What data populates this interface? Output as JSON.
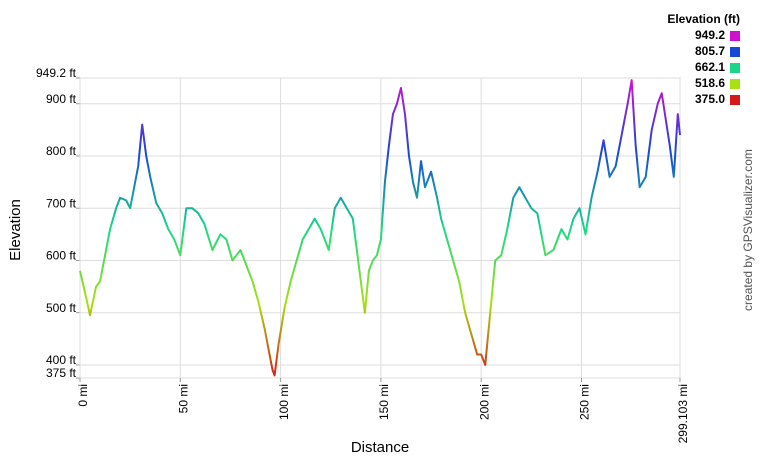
{
  "chart_data": {
    "type": "line",
    "x_label": "Distance",
    "y_label": "Elevation",
    "credit": "created by GPSVisualizer.com",
    "legend_title": "Elevation (ft)",
    "color_scale": [
      {
        "value": 949.2,
        "color": "#d010d0"
      },
      {
        "value": 805.7,
        "color": "#1848d8"
      },
      {
        "value": 662.1,
        "color": "#18d888"
      },
      {
        "value": 518.6,
        "color": "#a8e010"
      },
      {
        "value": 375.0,
        "label": "375.0",
        "color": "#d81818"
      }
    ],
    "grid": true,
    "xlim": [
      0,
      299.103
    ],
    "ylim": [
      375,
      949.2
    ],
    "xticks": [
      {
        "value": 0,
        "label": "0 mi"
      },
      {
        "value": 50,
        "label": "50 mi"
      },
      {
        "value": 100,
        "label": "100 mi"
      },
      {
        "value": 150,
        "label": "150 mi"
      },
      {
        "value": 200,
        "label": "200 mi"
      },
      {
        "value": 250,
        "label": "250 mi"
      },
      {
        "value": 299.103,
        "label": "299.103 mi"
      }
    ],
    "yticks": [
      {
        "value": 375,
        "label": "375 ft"
      },
      {
        "value": 400,
        "label": "400 ft"
      },
      {
        "value": 500,
        "label": "500 ft"
      },
      {
        "value": 600,
        "label": "600 ft"
      },
      {
        "value": 700,
        "label": "700 ft"
      },
      {
        "value": 800,
        "label": "800 ft"
      },
      {
        "value": 900,
        "label": "900 ft"
      },
      {
        "value": 949.2,
        "label": "949.2 ft"
      }
    ],
    "x": [
      0,
      3,
      5,
      8,
      10,
      12,
      15,
      18,
      20,
      23,
      25,
      27,
      29,
      31,
      33,
      35,
      38,
      41,
      44,
      47,
      50,
      53,
      56,
      59,
      62,
      66,
      70,
      73,
      76,
      80,
      83,
      86,
      89,
      92,
      94,
      96,
      97,
      99,
      102,
      105,
      108,
      111,
      114,
      117,
      120,
      124,
      127,
      130,
      133,
      136,
      138,
      140,
      142,
      144,
      146,
      148,
      150,
      152,
      154,
      156,
      158,
      160,
      162,
      164,
      166,
      168,
      170,
      172,
      175,
      178,
      180,
      183,
      186,
      189,
      192,
      195,
      198,
      200,
      202,
      204,
      207,
      210,
      213,
      216,
      219,
      222,
      225,
      228,
      232,
      236,
      240,
      243,
      246,
      249,
      252,
      255,
      258,
      261,
      264,
      267,
      270,
      273,
      275,
      277,
      279,
      282,
      285,
      288,
      290,
      292,
      294,
      296,
      298,
      299.103
    ],
    "values": [
      580,
      530,
      495,
      550,
      560,
      600,
      660,
      700,
      720,
      715,
      700,
      740,
      780,
      860,
      800,
      760,
      710,
      690,
      660,
      640,
      610,
      700,
      700,
      690,
      670,
      620,
      650,
      640,
      600,
      620,
      590,
      560,
      520,
      470,
      430,
      390,
      380,
      440,
      510,
      560,
      600,
      640,
      660,
      680,
      660,
      620,
      700,
      720,
      700,
      680,
      620,
      560,
      500,
      580,
      600,
      610,
      640,
      750,
      820,
      880,
      900,
      930,
      880,
      800,
      750,
      720,
      790,
      740,
      770,
      720,
      680,
      640,
      600,
      560,
      500,
      460,
      420,
      420,
      400,
      480,
      600,
      610,
      660,
      720,
      740,
      720,
      700,
      690,
      610,
      620,
      660,
      640,
      680,
      700,
      650,
      720,
      770,
      830,
      760,
      780,
      840,
      900,
      945,
      820,
      740,
      760,
      850,
      900,
      920,
      870,
      820,
      760,
      880,
      840
    ]
  }
}
